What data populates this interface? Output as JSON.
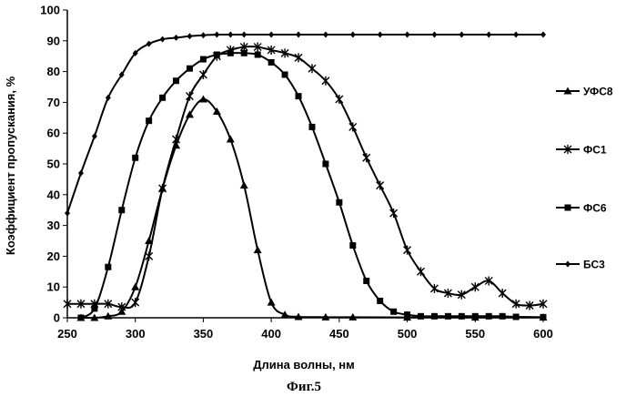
{
  "chart_data": {
    "type": "line",
    "title": "",
    "xlabel": "Длина волны, нм",
    "ylabel": "Коэффициент пропускания, %",
    "xlim": [
      250,
      600
    ],
    "ylim": [
      0,
      100
    ],
    "x_ticks": [
      250,
      300,
      350,
      400,
      450,
      500,
      550,
      600
    ],
    "y_ticks": [
      0,
      10,
      20,
      30,
      40,
      50,
      60,
      70,
      80,
      90,
      100
    ],
    "grid": false,
    "legend_position": "right",
    "caption": "Фиг.5",
    "series": [
      {
        "name": "УФС8",
        "marker": "triangle",
        "x": [
          260,
          270,
          280,
          290,
          300,
          310,
          320,
          330,
          340,
          350,
          360,
          370,
          380,
          390,
          400,
          410,
          420,
          440,
          460,
          500,
          550,
          600
        ],
        "values": [
          0,
          0,
          0.5,
          2,
          10,
          25,
          42,
          56,
          66,
          71,
          67,
          58,
          43,
          22,
          5,
          1,
          0.3,
          0.2,
          0.2,
          0.1,
          0.1,
          0.1
        ]
      },
      {
        "name": "ФС1",
        "marker": "star",
        "x": [
          250,
          260,
          270,
          280,
          290,
          300,
          310,
          320,
          330,
          340,
          350,
          360,
          370,
          380,
          390,
          400,
          410,
          420,
          430,
          440,
          450,
          460,
          470,
          480,
          490,
          500,
          510,
          520,
          530,
          540,
          550,
          560,
          570,
          580,
          590,
          600
        ],
        "values": [
          4.5,
          4.5,
          4.5,
          4.5,
          3.5,
          5,
          20,
          42,
          58,
          72,
          79,
          85,
          87,
          88,
          88,
          87,
          86,
          84.5,
          81,
          77,
          71,
          62,
          52,
          43,
          34,
          22,
          15,
          9.5,
          8,
          7.5,
          10,
          12,
          8,
          4.5,
          4,
          4.5
        ]
      },
      {
        "name": "ФС6",
        "marker": "square",
        "x": [
          260,
          270,
          280,
          290,
          300,
          310,
          320,
          330,
          340,
          350,
          360,
          370,
          380,
          390,
          400,
          410,
          420,
          430,
          440,
          450,
          460,
          470,
          480,
          490,
          500,
          510,
          520,
          530,
          540,
          550,
          560,
          570,
          580,
          600
        ],
        "values": [
          0,
          3,
          16.5,
          35,
          52,
          64,
          71.5,
          77,
          81,
          84,
          85.5,
          86,
          86,
          85.5,
          83,
          79,
          72,
          62,
          50,
          37.5,
          23.5,
          12,
          5.5,
          2,
          1,
          0.5,
          0.5,
          0.5,
          0.5,
          0.5,
          0.5,
          0.5,
          0.3,
          0.2
        ]
      },
      {
        "name": "БС3",
        "marker": "diamond",
        "x": [
          250,
          260,
          270,
          280,
          290,
          300,
          310,
          320,
          330,
          340,
          350,
          360,
          370,
          380,
          400,
          420,
          440,
          460,
          480,
          500,
          520,
          540,
          560,
          580,
          600
        ],
        "values": [
          34,
          47,
          59,
          71.5,
          79,
          86,
          89,
          90.5,
          91,
          91.5,
          91.8,
          92,
          92,
          92,
          92,
          92,
          92,
          92,
          92,
          92,
          92,
          92,
          92,
          92,
          92
        ]
      }
    ]
  }
}
